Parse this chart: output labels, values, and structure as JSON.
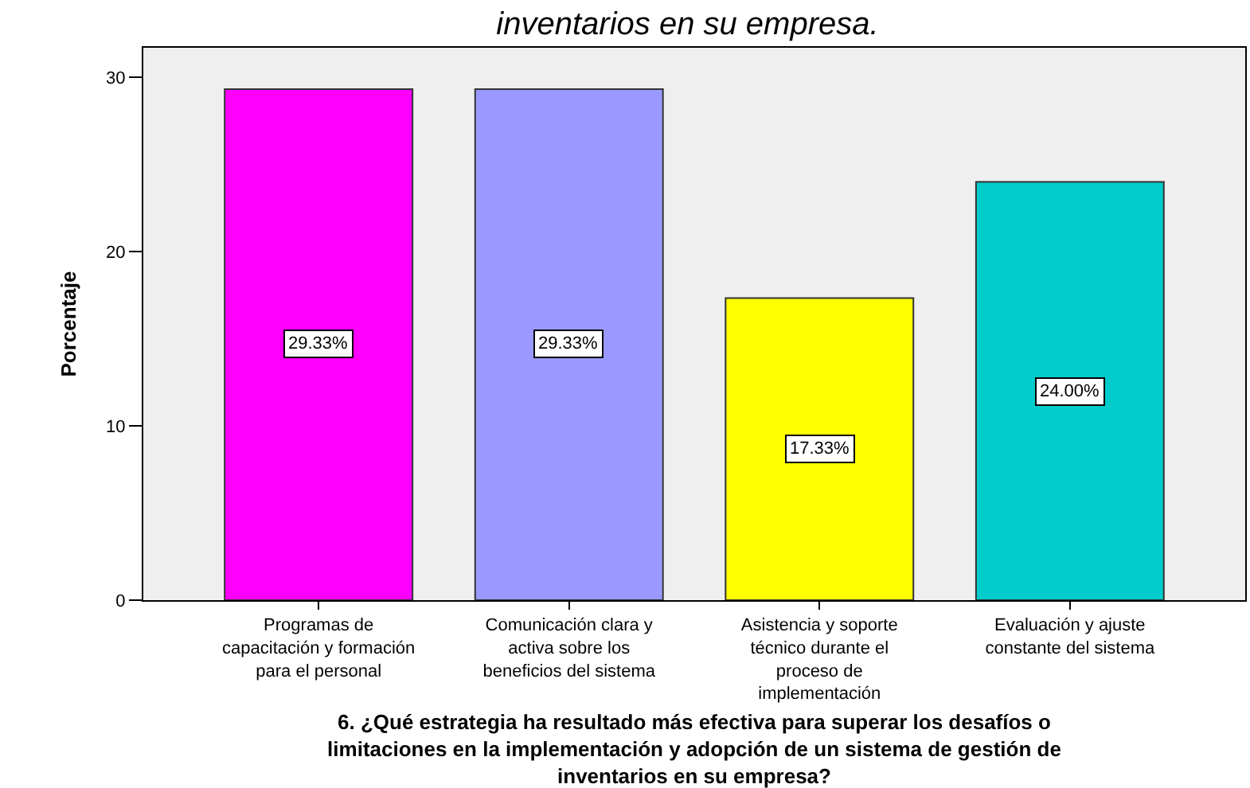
{
  "chart_data": {
    "type": "bar",
    "title": "inventarios en su empresa.",
    "xlabel": "6. ¿Qué estrategia ha resultado más efectiva para superar los desafíos o\nlimitaciones en la implementación y adopción de un sistema de gestión de\ninventarios en su empresa?",
    "ylabel": "Porcentaje",
    "categories": [
      "Programas de\ncapacitación y formación\npara el personal",
      "Comunicación clara y\nactiva sobre los\nbeneficios del sistema",
      "Asistencia y soporte\ntécnico durante el\nproceso de\nimplementación",
      "Evaluación y ajuste\nconstante del sistema"
    ],
    "values": [
      29.33,
      29.33,
      17.33,
      24.0
    ],
    "colors": [
      "#ff00ff",
      "#9999ff",
      "#ffff00",
      "#00cccc"
    ],
    "value_labels": [
      "29.33%",
      "29.33%",
      "17.33%",
      "24.00%"
    ],
    "ylim": [
      0,
      31.7
    ],
    "yticks": [
      0,
      10,
      20,
      30
    ]
  }
}
